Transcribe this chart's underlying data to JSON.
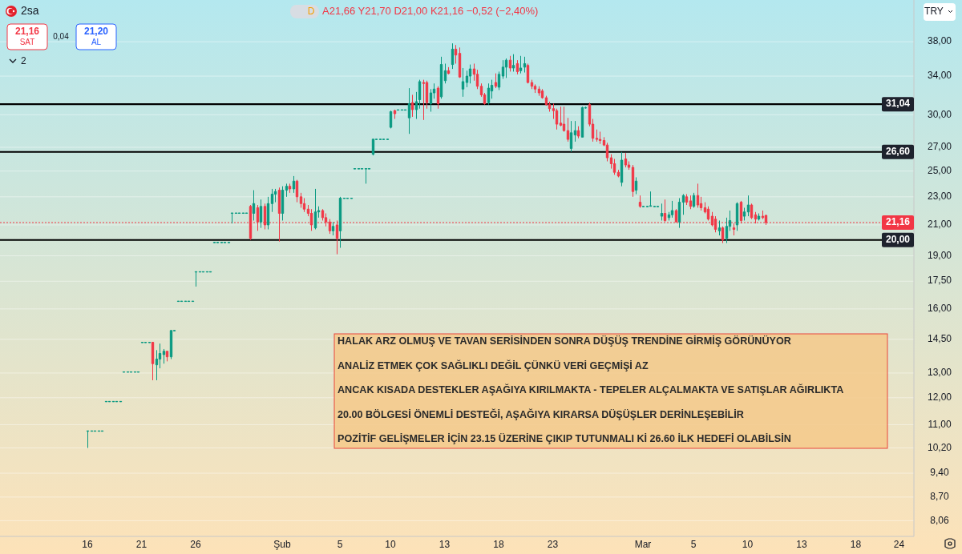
{
  "chart_data": {
    "type": "candlestick",
    "categories": [
      "16",
      null,
      null,
      null,
      null,
      null,
      null,
      null,
      null,
      null,
      null,
      null,
      null,
      null,
      null,
      "21",
      null,
      null,
      null,
      null,
      null,
      null,
      null,
      null,
      null,
      null,
      null,
      null,
      null,
      null,
      "26",
      null,
      null,
      null,
      null,
      null,
      null,
      null,
      null,
      null,
      null,
      null,
      null,
      null,
      null,
      null,
      null,
      null,
      null,
      null,
      null,
      null,
      null,
      null,
      "Şub",
      null,
      null,
      null,
      null,
      null,
      null,
      null,
      null,
      null,
      null,
      null,
      null,
      null,
      null,
      null,
      "5",
      null,
      null,
      null,
      null,
      null,
      null,
      null,
      null,
      null,
      null,
      null,
      null,
      null,
      "10",
      null,
      null,
      null,
      null,
      null,
      null,
      null,
      null,
      null,
      null,
      null,
      null,
      null,
      null,
      "13",
      null,
      null,
      null,
      null,
      null,
      null,
      null,
      null,
      null,
      null,
      null,
      null,
      null,
      null,
      "18",
      null,
      null,
      null,
      null,
      null,
      null,
      null,
      null,
      null,
      null,
      null,
      null,
      null,
      null,
      "23",
      null,
      null,
      null,
      null,
      null,
      null,
      null,
      null,
      null,
      null,
      null,
      null,
      null,
      null,
      null,
      null,
      null,
      null,
      null,
      null,
      null,
      null,
      null,
      null,
      "Mar",
      null,
      null,
      null,
      null,
      null,
      null,
      null,
      null,
      null,
      null,
      null,
      null,
      null,
      "5",
      null,
      null,
      null,
      null,
      null,
      null,
      null,
      null,
      null,
      null,
      null,
      null,
      null,
      null,
      "10",
      null,
      null,
      null,
      null,
      null,
      null,
      null,
      null,
      null,
      null,
      null,
      null,
      null,
      null,
      "13",
      null,
      null,
      null,
      null,
      null,
      null,
      null,
      null,
      null,
      null,
      null,
      null,
      null,
      null,
      "18",
      null,
      null,
      null,
      null,
      null,
      null,
      null,
      null,
      null,
      null,
      null,
      "24",
      null,
      null,
      null
    ],
    "ohlc": [
      [
        10.78,
        10.78,
        10.2,
        10.78
      ],
      [
        10.78,
        10.78,
        10.78,
        10.78
      ],
      [
        10.78,
        10.78,
        10.78,
        10.78
      ],
      [
        10.78,
        10.78,
        10.78,
        10.78
      ],
      [
        10.78,
        10.78,
        10.78,
        10.78
      ],
      [
        11.86,
        11.86,
        11.86,
        11.86
      ],
      [
        11.86,
        11.86,
        11.86,
        11.86
      ],
      [
        11.86,
        11.86,
        11.86,
        11.86
      ],
      [
        11.86,
        11.86,
        11.86,
        11.86
      ],
      [
        11.86,
        11.86,
        11.86,
        11.86
      ],
      [
        13.05,
        13.05,
        13.05,
        13.05
      ],
      [
        13.05,
        13.05,
        13.05,
        13.05
      ],
      [
        13.05,
        13.05,
        13.05,
        13.05
      ],
      [
        13.05,
        13.05,
        13.05,
        13.05
      ],
      [
        13.05,
        13.05,
        13.05,
        13.05
      ],
      [
        14.36,
        14.36,
        14.36,
        14.36
      ],
      [
        14.36,
        14.36,
        14.36,
        14.36
      ],
      [
        14.36,
        14.36,
        14.36,
        14.36
      ],
      [
        14.36,
        14.36,
        12.7,
        13.4
      ],
      [
        13.35,
        14.0,
        12.7,
        13.6
      ],
      [
        13.6,
        14.3,
        13.2,
        13.85
      ],
      [
        13.8,
        14.05,
        13.4,
        13.95
      ],
      [
        13.95,
        13.95,
        13.5,
        13.7
      ],
      [
        13.7,
        14.92,
        13.6,
        14.92
      ],
      [
        14.92,
        14.92,
        14.92,
        14.92
      ],
      [
        16.41,
        16.41,
        16.41,
        16.41
      ],
      [
        16.41,
        16.41,
        16.41,
        16.41
      ],
      [
        16.41,
        16.41,
        16.41,
        16.41
      ],
      [
        16.41,
        16.41,
        16.41,
        16.41
      ],
      [
        16.41,
        16.41,
        16.41,
        16.41
      ],
      [
        18.05,
        18.05,
        17.2,
        18.05
      ],
      [
        18.05,
        18.05,
        18.05,
        18.05
      ],
      [
        18.05,
        18.05,
        18.05,
        18.05
      ],
      [
        18.05,
        18.05,
        18.05,
        18.05
      ],
      [
        18.05,
        18.05,
        18.05,
        18.05
      ],
      [
        19.85,
        19.85,
        19.85,
        19.85
      ],
      [
        19.85,
        19.85,
        19.85,
        19.85
      ],
      [
        19.85,
        19.85,
        19.85,
        19.85
      ],
      [
        19.85,
        19.85,
        19.85,
        19.85
      ],
      [
        19.85,
        19.85,
        19.85,
        19.85
      ],
      [
        21.83,
        21.83,
        21.1,
        21.83
      ],
      [
        21.83,
        21.83,
        21.83,
        21.83
      ],
      [
        21.83,
        21.83,
        21.83,
        21.83
      ],
      [
        21.83,
        21.83,
        21.83,
        21.83
      ],
      [
        21.83,
        21.83,
        21.83,
        21.83
      ],
      [
        22.3,
        22.4,
        20.0,
        20.1
      ],
      [
        21.8,
        23.5,
        21.3,
        22.5
      ],
      [
        22.2,
        22.4,
        20.6,
        21.2
      ],
      [
        21.2,
        22.8,
        20.8,
        22.3
      ],
      [
        22.3,
        22.5,
        20.7,
        21.0
      ],
      [
        21.0,
        23.0,
        20.7,
        22.5
      ],
      [
        22.5,
        23.6,
        21.9,
        23.2
      ],
      [
        23.2,
        23.6,
        22.6,
        23.4
      ],
      [
        23.5,
        23.7,
        19.9,
        21.8
      ],
      [
        21.8,
        23.8,
        21.3,
        23.5
      ],
      [
        23.5,
        24.0,
        23.0,
        23.8
      ],
      [
        23.8,
        24.0,
        23.3,
        23.6
      ],
      [
        23.6,
        24.6,
        23.3,
        24.2
      ],
      [
        24.2,
        24.3,
        22.6,
        23.0
      ],
      [
        23.0,
        23.3,
        22.2,
        22.5
      ],
      [
        22.5,
        22.9,
        21.9,
        22.1
      ],
      [
        22.1,
        22.4,
        21.6,
        21.8
      ],
      [
        21.8,
        22.1,
        20.6,
        21.0
      ],
      [
        20.8,
        23.6,
        20.7,
        21.9
      ],
      [
        21.9,
        22.3,
        21.5,
        22.0
      ],
      [
        22.0,
        22.1,
        21.3,
        21.5
      ],
      [
        21.5,
        21.8,
        20.9,
        21.2
      ],
      [
        21.2,
        21.4,
        20.4,
        20.6
      ],
      [
        20.6,
        21.2,
        20.3,
        20.9
      ],
      [
        21.0,
        21.3,
        19.1,
        20.1
      ],
      [
        20.6,
        23.0,
        19.5,
        22.9
      ],
      [
        22.9,
        22.9,
        22.9,
        22.9
      ],
      [
        22.9,
        22.9,
        22.9,
        22.9
      ],
      [
        22.9,
        22.9,
        22.9,
        22.9
      ],
      [
        25.2,
        25.2,
        25.2,
        25.2
      ],
      [
        25.2,
        25.2,
        25.2,
        25.2
      ],
      [
        25.2,
        25.2,
        25.2,
        25.2
      ],
      [
        25.2,
        25.2,
        24.0,
        25.2
      ],
      [
        25.2,
        25.2,
        25.2,
        25.2
      ],
      [
        26.4,
        27.72,
        26.3,
        27.72
      ],
      [
        27.72,
        27.72,
        27.72,
        27.72
      ],
      [
        27.72,
        27.72,
        27.72,
        27.72
      ],
      [
        27.72,
        27.72,
        27.72,
        27.72
      ],
      [
        27.72,
        27.72,
        27.72,
        27.72
      ],
      [
        28.8,
        30.4,
        28.7,
        30.3
      ],
      [
        30.4,
        30.5,
        29.6,
        30.1
      ],
      [
        30.49,
        30.49,
        30.49,
        30.49
      ],
      [
        30.49,
        30.49,
        30.49,
        30.49
      ],
      [
        30.49,
        30.49,
        30.49,
        30.49
      ],
      [
        29.7,
        32.7,
        28.2,
        31.1
      ],
      [
        31.2,
        32.0,
        29.8,
        30.5
      ],
      [
        30.5,
        32.3,
        29.6,
        31.3
      ],
      [
        31.5,
        33.6,
        30.6,
        33.4
      ],
      [
        33.3,
        33.6,
        29.5,
        33.2
      ],
      [
        33.3,
        33.5,
        30.6,
        31.2
      ],
      [
        31.1,
        32.6,
        30.3,
        32.2
      ],
      [
        32.2,
        33.2,
        31.6,
        32.6
      ],
      [
        32.7,
        32.9,
        30.6,
        31.1
      ],
      [
        31.8,
        36.2,
        31.6,
        35.3
      ],
      [
        33.5,
        35.4,
        33.2,
        34.6
      ],
      [
        34.6,
        35.0,
        34.2,
        34.3
      ],
      [
        35.3,
        37.8,
        34.8,
        37.1
      ],
      [
        37.1,
        37.6,
        35.4,
        36.4
      ],
      [
        36.6,
        37.3,
        33.8,
        33.9
      ],
      [
        32.6,
        34.9,
        31.8,
        33.4
      ],
      [
        33.3,
        34.6,
        32.8,
        34.0
      ],
      [
        34.0,
        35.3,
        33.2,
        34.8
      ],
      [
        34.8,
        35.4,
        33.5,
        34.2
      ],
      [
        34.2,
        34.7,
        32.6,
        32.9
      ],
      [
        32.9,
        33.2,
        31.8,
        32.0
      ],
      [
        32.0,
        32.2,
        31.0,
        31.1
      ],
      [
        31.2,
        33.2,
        31.0,
        32.7
      ],
      [
        32.4,
        33.6,
        31.6,
        33.0
      ],
      [
        33.3,
        34.3,
        32.7,
        32.9
      ],
      [
        32.8,
        34.5,
        32.5,
        34.2
      ],
      [
        34.0,
        35.8,
        33.7,
        35.0
      ],
      [
        35.0,
        36.0,
        33.8,
        35.8
      ],
      [
        35.8,
        36.3,
        34.5,
        34.9
      ],
      [
        34.9,
        36.5,
        34.5,
        35.2
      ],
      [
        35.4,
        35.8,
        34.2,
        34.5
      ],
      [
        34.6,
        36.3,
        34.3,
        34.9
      ],
      [
        35.0,
        36.2,
        34.4,
        35.4
      ],
      [
        35.2,
        35.4,
        33.2,
        33.3
      ],
      [
        33.3,
        33.6,
        32.6,
        32.9
      ],
      [
        32.9,
        33.1,
        32.2,
        32.6
      ],
      [
        32.6,
        32.9,
        31.9,
        32.2
      ],
      [
        32.4,
        32.6,
        31.6,
        31.7
      ],
      [
        31.7,
        31.9,
        30.9,
        31.0
      ],
      [
        31.0,
        31.3,
        30.3,
        30.6
      ],
      [
        30.6,
        31.1,
        29.6,
        30.4
      ],
      [
        30.4,
        30.6,
        28.6,
        29.1
      ],
      [
        29.2,
        30.8,
        28.9,
        29.0
      ],
      [
        29.1,
        30.8,
        28.4,
        28.5
      ],
      [
        28.5,
        29.7,
        27.5,
        27.7
      ],
      [
        26.9,
        29.4,
        26.6,
        28.3
      ],
      [
        28.1,
        29.4,
        27.5,
        28.5
      ],
      [
        28.5,
        28.9,
        27.8,
        28.0
      ],
      [
        27.9,
        30.8,
        27.9,
        30.7
      ],
      [
        30.7,
        30.8,
        30.6,
        30.7
      ],
      [
        31.0,
        31.2,
        28.9,
        29.1
      ],
      [
        29.1,
        29.6,
        27.5,
        27.8
      ],
      [
        27.8,
        28.6,
        27.5,
        27.7
      ],
      [
        27.7,
        28.4,
        27.3,
        27.6
      ],
      [
        27.6,
        27.9,
        27.1,
        27.2
      ],
      [
        27.2,
        27.4,
        25.8,
        26.1
      ],
      [
        26.1,
        26.4,
        25.2,
        25.6
      ],
      [
        25.6,
        26.0,
        24.7,
        24.9
      ],
      [
        24.9,
        25.1,
        24.5,
        24.6
      ],
      [
        24.1,
        26.6,
        23.8,
        25.9
      ],
      [
        26.0,
        26.5,
        25.3,
        25.5
      ],
      [
        25.5,
        25.8,
        25.1,
        25.3
      ],
      [
        25.3,
        25.5,
        23.0,
        23.4
      ],
      [
        23.5,
        24.5,
        23.2,
        24.2
      ],
      [
        22.6,
        23.1,
        22.2,
        22.3
      ],
      [
        22.3,
        22.3,
        22.3,
        22.3
      ],
      [
        22.3,
        22.3,
        22.3,
        22.3
      ],
      [
        22.3,
        23.4,
        22.3,
        22.35
      ],
      [
        22.3,
        22.3,
        22.3,
        22.3
      ],
      [
        22.3,
        22.3,
        22.3,
        22.3
      ],
      [
        21.6,
        22.5,
        21.3,
        21.8
      ],
      [
        21.8,
        22.8,
        21.2,
        21.3
      ],
      [
        21.5,
        21.9,
        21.3,
        21.7
      ],
      [
        21.7,
        22.7,
        21.5,
        22.0
      ],
      [
        22.0,
        22.1,
        21.2,
        21.2
      ],
      [
        21.2,
        22.9,
        20.8,
        22.6
      ],
      [
        22.6,
        23.2,
        21.7,
        23.1
      ],
      [
        23.0,
        23.2,
        22.4,
        22.6
      ],
      [
        22.7,
        23.1,
        22.1,
        22.3
      ],
      [
        22.3,
        23.3,
        22.2,
        23.1
      ],
      [
        23.1,
        24.0,
        22.2,
        22.4
      ],
      [
        22.5,
        23.0,
        22.0,
        22.2
      ],
      [
        22.2,
        22.6,
        21.8,
        21.9
      ],
      [
        22.1,
        22.3,
        21.3,
        21.4
      ],
      [
        21.6,
        21.9,
        20.9,
        21.0
      ],
      [
        21.4,
        21.6,
        20.5,
        20.7
      ],
      [
        20.6,
        21.3,
        20.3,
        20.8
      ],
      [
        20.8,
        20.9,
        19.8,
        20.0
      ],
      [
        20.1,
        21.5,
        19.8,
        20.9
      ],
      [
        20.9,
        22.0,
        20.6,
        21.3
      ],
      [
        20.8,
        21.1,
        20.3,
        20.7
      ],
      [
        21.0,
        22.6,
        20.6,
        22.5
      ],
      [
        22.6,
        22.7,
        21.1,
        21.3
      ],
      [
        21.6,
        22.2,
        21.3,
        21.9
      ],
      [
        21.9,
        23.1,
        21.6,
        22.4
      ],
      [
        22.4,
        22.5,
        21.4,
        21.5
      ],
      [
        21.7,
        21.9,
        21.1,
        21.4
      ],
      [
        21.4,
        21.8,
        21.3,
        21.6
      ],
      [
        21.6,
        22.0,
        21.4,
        21.5
      ],
      [
        21.66,
        21.7,
        21.0,
        21.16
      ],
      null,
      null,
      null,
      null,
      null,
      null,
      null,
      null,
      null,
      null,
      null,
      null,
      null,
      null,
      null,
      null,
      null,
      null,
      null,
      null,
      null,
      null,
      null,
      null,
      null,
      null,
      null,
      null,
      null,
      null,
      null,
      null,
      null,
      null,
      null,
      null,
      null,
      null,
      null,
      null
    ],
    "log": true,
    "ylim": [
      7.66,
      43.5
    ],
    "yticks": [
      {
        "value": 8.06,
        "label": "8,06"
      },
      {
        "value": 8.7,
        "label": "8,70"
      },
      {
        "value": 9.4,
        "label": "9,40"
      },
      {
        "value": 10.2,
        "label": "10,20"
      },
      {
        "value": 11,
        "label": "11,00"
      },
      {
        "value": 12,
        "label": "12,00"
      },
      {
        "value": 13,
        "label": "13,00"
      },
      {
        "value": 14.5,
        "label": "14,50"
      },
      {
        "value": 16,
        "label": "16,00"
      },
      {
        "value": 17.5,
        "label": "17,50"
      },
      {
        "value": 19,
        "label": "19,00"
      },
      {
        "value": 21,
        "label": "21,00"
      },
      {
        "value": 23,
        "label": "23,00"
      },
      {
        "value": 25,
        "label": "25,00"
      },
      {
        "value": 27,
        "label": "27,00"
      },
      {
        "value": 30,
        "label": "30,00"
      },
      {
        "value": 34,
        "label": "34,00"
      },
      {
        "value": 38,
        "label": "38,00"
      }
    ],
    "grid": "y",
    "ref_lines": [
      {
        "axis": "y",
        "value": 31.04,
        "label": "31,04",
        "color": "#000000"
      },
      {
        "axis": "y",
        "value": 26.6,
        "label": "26,60",
        "color": "#000000"
      },
      {
        "axis": "y",
        "value": 20,
        "label": "20,00",
        "color": "#000000"
      },
      {
        "axis": "y",
        "value": 21.16,
        "label": "21,16",
        "color": "#f23645",
        "line_style": "dotted"
      }
    ],
    "annotations": [
      "2sa",
      "D",
      "A21,66 Y21,70 D21,00 K21,16 −0,52 (−2,40%)",
      "21,16",
      "SAT",
      "0,04",
      "21,20",
      "AL",
      "2",
      "TRY",
      "HALAK ARZ OLMUŞ VE TAVAN SERİSİNDEN SONRA DÜŞÜŞ TRENDİNE GİRMİŞ GÖRÜNÜYOR",
      "ANALİZ ETMEK ÇOK SAĞLIKLI DEĞİL ÇÜNKÜ VERİ GEÇMİŞİ AZ",
      "ANCAK KISADA DESTEKLER AŞAĞIYA KIRILMAKTA - TEPELER ALÇALMAKTA VE SATIŞLAR AĞIRLIKTA",
      "20.00 BÖLGESİ ÖNEMLİ DESTEĞİ, AŞAĞIYA KIRARSA DÜŞÜŞLER DERİNLEŞEBİLİR",
      "POZİTİF GELİŞMELER İÇİN 23.15 ÜZERİNE ÇIKIP TUTUNMALI Kİ 26.60 İLK HEDEFİ OLABİLSİN"
    ]
  }
}
